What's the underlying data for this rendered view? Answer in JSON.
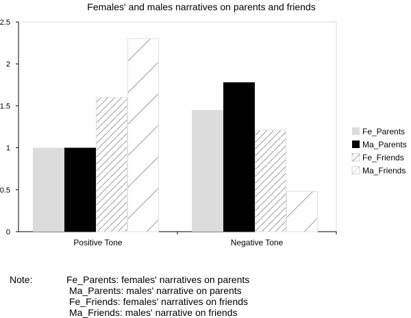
{
  "chart_data": {
    "type": "bar",
    "title": "Females' and males narratives on parents and friends",
    "categories": [
      "Positive Tone",
      "Negative Tone"
    ],
    "series": [
      {
        "name": "Fe_Parents",
        "values": [
          1.0,
          1.45
        ],
        "fill": "#dcdcdc",
        "pattern": "solid"
      },
      {
        "name": "Ma_Parents",
        "values": [
          1.0,
          1.78
        ],
        "fill": "#000000",
        "pattern": "solid"
      },
      {
        "name": "Fe_Friends",
        "values": [
          1.6,
          1.21
        ],
        "fill": "#ffffff",
        "pattern": "dense-diagonal"
      },
      {
        "name": "Ma_Friends",
        "values": [
          2.3,
          0.48
        ],
        "fill": "#ffffff",
        "pattern": "sparse-diagonal"
      }
    ],
    "ylim": [
      0,
      2.5
    ],
    "yticks": [
      "0",
      "0.5",
      "1",
      "1.5",
      "2",
      "2.5"
    ],
    "ytick_values": [
      0,
      0.5,
      1,
      1.5,
      2,
      2.5
    ],
    "xlabel": "",
    "ylabel": "",
    "grid": false,
    "legend": "right"
  },
  "note": {
    "title": "Note:",
    "lines": [
      "Fe_Parents: females' narratives on parents",
      "Ma_Parents: males' narrative on parents",
      "Fe_Friends: females' narratives on friends",
      "Ma_Friends: males' narrative on friends"
    ]
  }
}
